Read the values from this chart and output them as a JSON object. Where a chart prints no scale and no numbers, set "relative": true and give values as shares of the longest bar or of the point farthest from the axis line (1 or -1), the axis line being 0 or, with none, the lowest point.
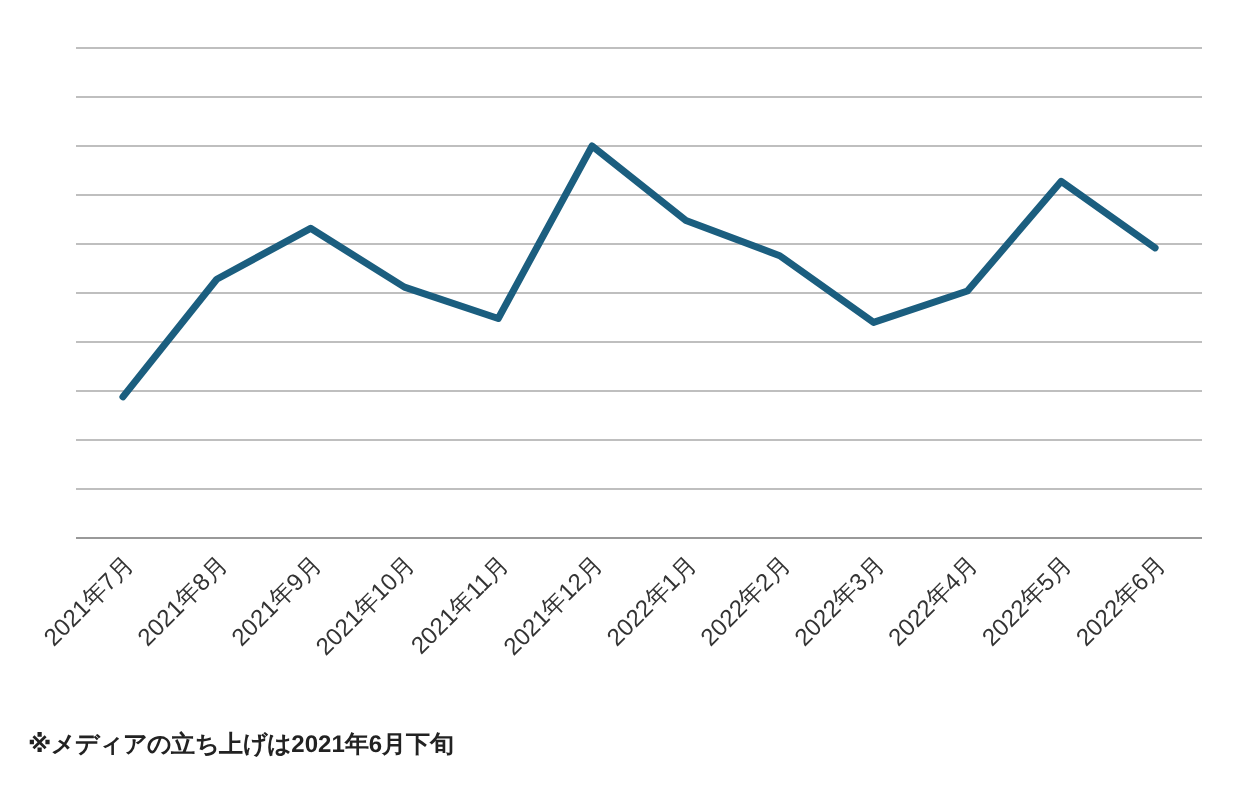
{
  "chart_data": {
    "type": "line",
    "relative": true,
    "grid": "y",
    "categories": [
      "2021年7月",
      "2021年8月",
      "2021年9月",
      "2021年10月",
      "2021年11月",
      "2021年12月",
      "2022年1月",
      "2022年2月",
      "2022年3月",
      "2022年4月",
      "2022年5月",
      "2022年6月"
    ],
    "series": [
      {
        "color": "#1b5e7f",
        "values": [
          0.36,
          0.66,
          0.79,
          0.64,
          0.56,
          1,
          0.81,
          0.72,
          0.55,
          0.63,
          0.91,
          0.74
        ]
      }
    ],
    "annotations": [
      "**※メディアの立ち上げは2021年6月下旬**"
    ]
  }
}
